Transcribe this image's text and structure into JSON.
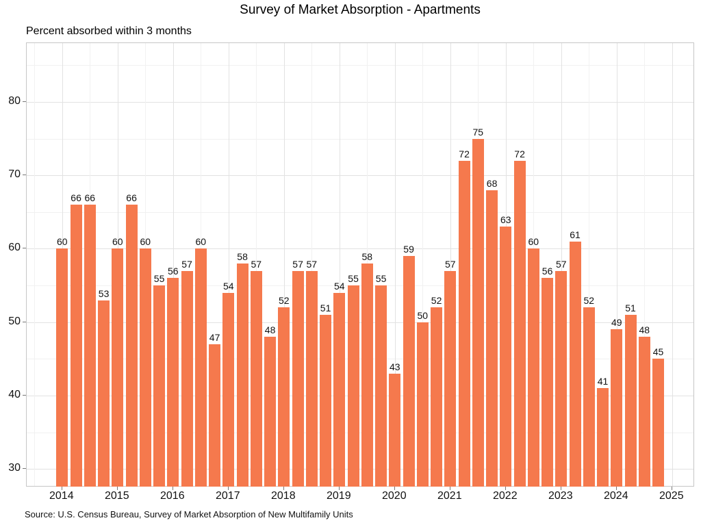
{
  "title": "Survey of Market Absorption - Apartments",
  "subtitle": "Percent absorbed within 3 months",
  "source": "Source: U.S. Census Bureau, Survey of Market Absorption of New Multifamily Units",
  "colors": {
    "bar": "#F5794D",
    "grid_major": "#e2e2e2",
    "grid_minor": "#f1f1f1",
    "panel_border": "#c6c6c6",
    "tick": "#777777",
    "text": "#111111"
  },
  "chart_data": {
    "type": "bar",
    "title": "Survey of Market Absorption - Apartments",
    "subtitle": "Percent absorbed within 3 months",
    "ylabel": "Percent absorbed within 3 months",
    "xlabel": "",
    "frequency": "quarterly",
    "start_year": 2014,
    "categories": [
      "2014 Q1",
      "2014 Q2",
      "2014 Q3",
      "2014 Q4",
      "2015 Q1",
      "2015 Q2",
      "2015 Q3",
      "2015 Q4",
      "2016 Q1",
      "2016 Q2",
      "2016 Q3",
      "2016 Q4",
      "2017 Q1",
      "2017 Q2",
      "2017 Q3",
      "2017 Q4",
      "2018 Q1",
      "2018 Q2",
      "2018 Q3",
      "2018 Q4",
      "2019 Q1",
      "2019 Q2",
      "2019 Q3",
      "2019 Q4",
      "2020 Q1",
      "2020 Q2",
      "2020 Q3",
      "2020 Q4",
      "2021 Q1",
      "2021 Q2",
      "2021 Q3",
      "2021 Q4",
      "2022 Q1",
      "2022 Q2",
      "2022 Q3",
      "2022 Q4",
      "2023 Q1",
      "2023 Q2",
      "2023 Q3",
      "2023 Q4",
      "2024 Q1",
      "2024 Q2",
      "2024 Q3",
      "2024 Q4"
    ],
    "values": [
      60,
      66,
      66,
      53,
      60,
      66,
      60,
      55,
      56,
      57,
      60,
      47,
      54,
      58,
      57,
      48,
      52,
      57,
      57,
      51,
      54,
      55,
      58,
      55,
      43,
      59,
      50,
      52,
      57,
      72,
      75,
      68,
      63,
      72,
      60,
      56,
      57,
      61,
      52,
      41,
      49,
      51,
      48,
      45
    ],
    "bar_value_labels_shown": true,
    "x_tick_labels": [
      "2014",
      "2015",
      "2016",
      "2017",
      "2018",
      "2019",
      "2020",
      "2021",
      "2022",
      "2023",
      "2024",
      "2025"
    ],
    "y_tick_labels": [
      "30",
      "40",
      "50",
      "60",
      "70",
      "80"
    ],
    "y_ticks": [
      30,
      40,
      50,
      60,
      70,
      80
    ],
    "y_minor_ticks": [
      35,
      45,
      55,
      65,
      75,
      85
    ],
    "xlim": [
      2013.36,
      2025.41
    ],
    "ylim": [
      27.5,
      88
    ],
    "grid": "on",
    "legend": "none"
  }
}
